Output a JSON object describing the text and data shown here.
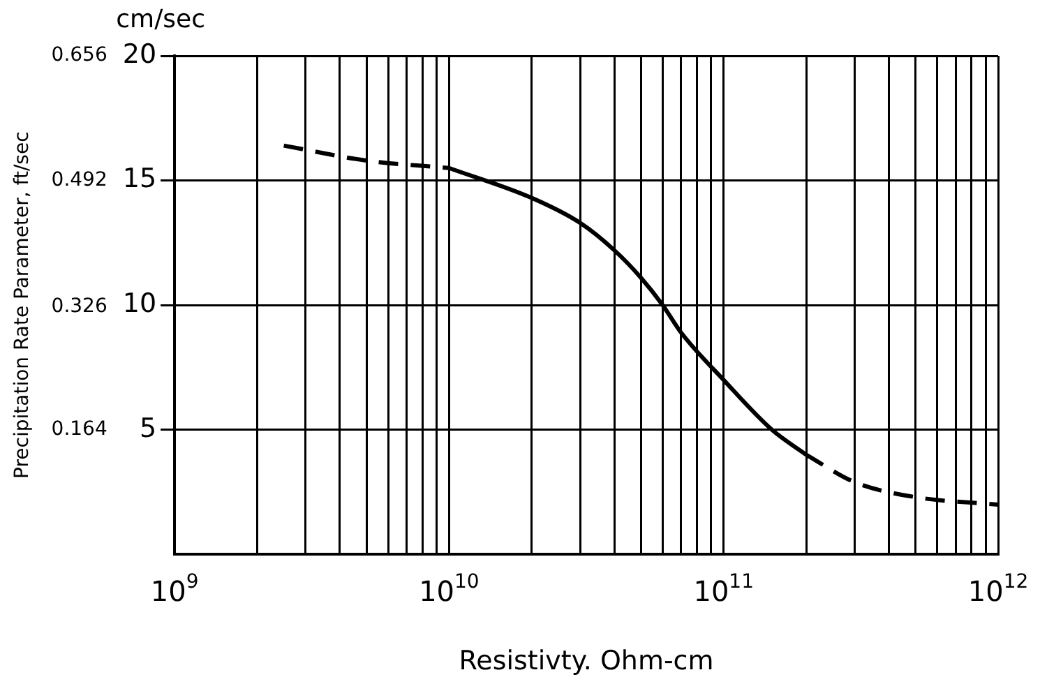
{
  "chart_data": {
    "type": "line",
    "xlabel": "Resistivty. Ohm-cm",
    "ylabel": "cm/sec",
    "y2label": "Precipitation Rate Parameter, ft/sec",
    "log": "x",
    "grid": true,
    "legend": false,
    "xlim": [
      1000000000.0,
      1000000000000.0
    ],
    "xticks": [
      {
        "value": 1000000000.0,
        "label": "10$^{9}$"
      },
      {
        "value": 2000000000.0,
        "label": null
      },
      {
        "value": 3000000000.0,
        "label": null
      },
      {
        "value": 4000000000.0,
        "label": null
      },
      {
        "value": 5000000000.0,
        "label": null
      },
      {
        "value": 6000000000.0,
        "label": null
      },
      {
        "value": 7000000000.0,
        "label": null
      },
      {
        "value": 8000000000.0,
        "label": null
      },
      {
        "value": 9000000000.0,
        "label": null
      },
      {
        "value": 10000000000.0,
        "label": "10$^{10}$"
      },
      {
        "value": 20000000000.0,
        "label": null
      },
      {
        "value": 30000000000.0,
        "label": null
      },
      {
        "value": 40000000000.0,
        "label": null
      },
      {
        "value": 50000000000.0,
        "label": null
      },
      {
        "value": 60000000000.0,
        "label": null
      },
      {
        "value": 70000000000.0,
        "label": null
      },
      {
        "value": 80000000000.0,
        "label": null
      },
      {
        "value": 90000000000.0,
        "label": null
      },
      {
        "value": 100000000000.0,
        "label": "10$^{11}$"
      },
      {
        "value": 200000000000.0,
        "label": null
      },
      {
        "value": 300000000000.0,
        "label": null
      },
      {
        "value": 400000000000.0,
        "label": null
      },
      {
        "value": 500000000000.0,
        "label": null
      },
      {
        "value": 600000000000.0,
        "label": null
      },
      {
        "value": 700000000000.0,
        "label": null
      },
      {
        "value": 800000000000.0,
        "label": null
      },
      {
        "value": 900000000000.0,
        "label": null
      },
      {
        "value": 1000000000000.0,
        "label": "10$^{12}$"
      }
    ],
    "ylim": [
      0,
      20
    ],
    "yticks": [
      5,
      10,
      15,
      20
    ],
    "y2lim": [
      0,
      0.656
    ],
    "y2ticks": [
      0.164,
      0.326,
      0.492,
      0.656
    ],
    "series": [
      {
        "color": "#000000",
        "line_style": "dashed",
        "x": [
          2500000000.0,
          5000000000.0,
          10000000000.0
        ],
        "values": [
          16.4,
          15.8,
          15.5
        ]
      },
      {
        "color": "#000000",
        "line_style": "solid",
        "x": [
          10000000000.0,
          20000000000.0,
          30000000000.0,
          40000000000.0,
          50000000000.0,
          60000000000.0,
          70000000000.0,
          100000000000.0,
          150000000000.0,
          200000000000.0
        ],
        "values": [
          15.5,
          14.3,
          13.3,
          12.2,
          11.1,
          10,
          8.9,
          7.0,
          5.0,
          4.0
        ]
      },
      {
        "color": "#000000",
        "line_style": "dashed",
        "x": [
          200000000000.0,
          300000000000.0,
          500000000000.0,
          1000000000000.0
        ],
        "values": [
          4.0,
          2.9,
          2.3,
          2.0
        ]
      }
    ]
  }
}
